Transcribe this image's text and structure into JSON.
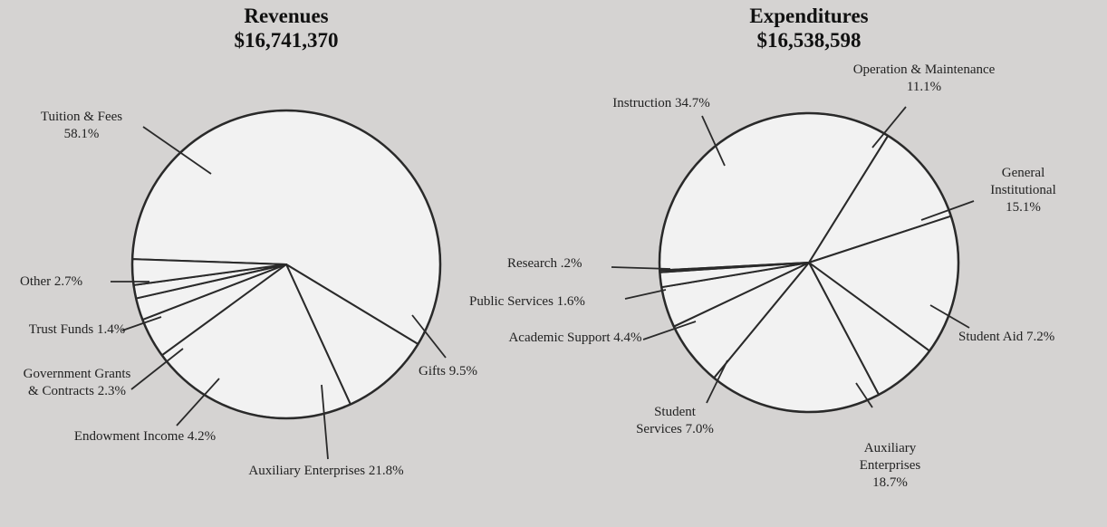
{
  "chart_data": [
    {
      "type": "pie",
      "title": "Revenues",
      "subtitle": "$16,741,370",
      "categories": [
        "Tuition & Fees",
        "Gifts",
        "Auxiliary Enterprises",
        "Endowment Income",
        "Government Grants & Contracts",
        "Trust Funds",
        "Other"
      ],
      "values": [
        58.1,
        9.5,
        21.8,
        4.2,
        2.3,
        1.4,
        2.7
      ],
      "value_labels": [
        "58.1%",
        "9.5%",
        "21.8%",
        "4.2%",
        "2.3%",
        "1.4%",
        "2.7%"
      ],
      "color": "#f2f2f2"
    },
    {
      "type": "pie",
      "title": "Expenditures",
      "subtitle": "$16,538,598",
      "categories": [
        "Instruction",
        "Operation & Maintenance",
        "General Institutional",
        "Student Aid",
        "Auxiliary Enterprises",
        "Student Services",
        "Academic Support",
        "Public Services",
        "Research"
      ],
      "values": [
        34.7,
        11.1,
        15.1,
        7.2,
        18.7,
        7.0,
        4.4,
        1.6,
        0.2
      ],
      "value_labels": [
        "34.7%",
        "11.1%",
        "15.1%",
        "7.2%",
        "18.7%",
        "7.0%",
        "4.4%",
        "1.6%",
        ".2%"
      ],
      "color": "#f2f2f2"
    }
  ]
}
